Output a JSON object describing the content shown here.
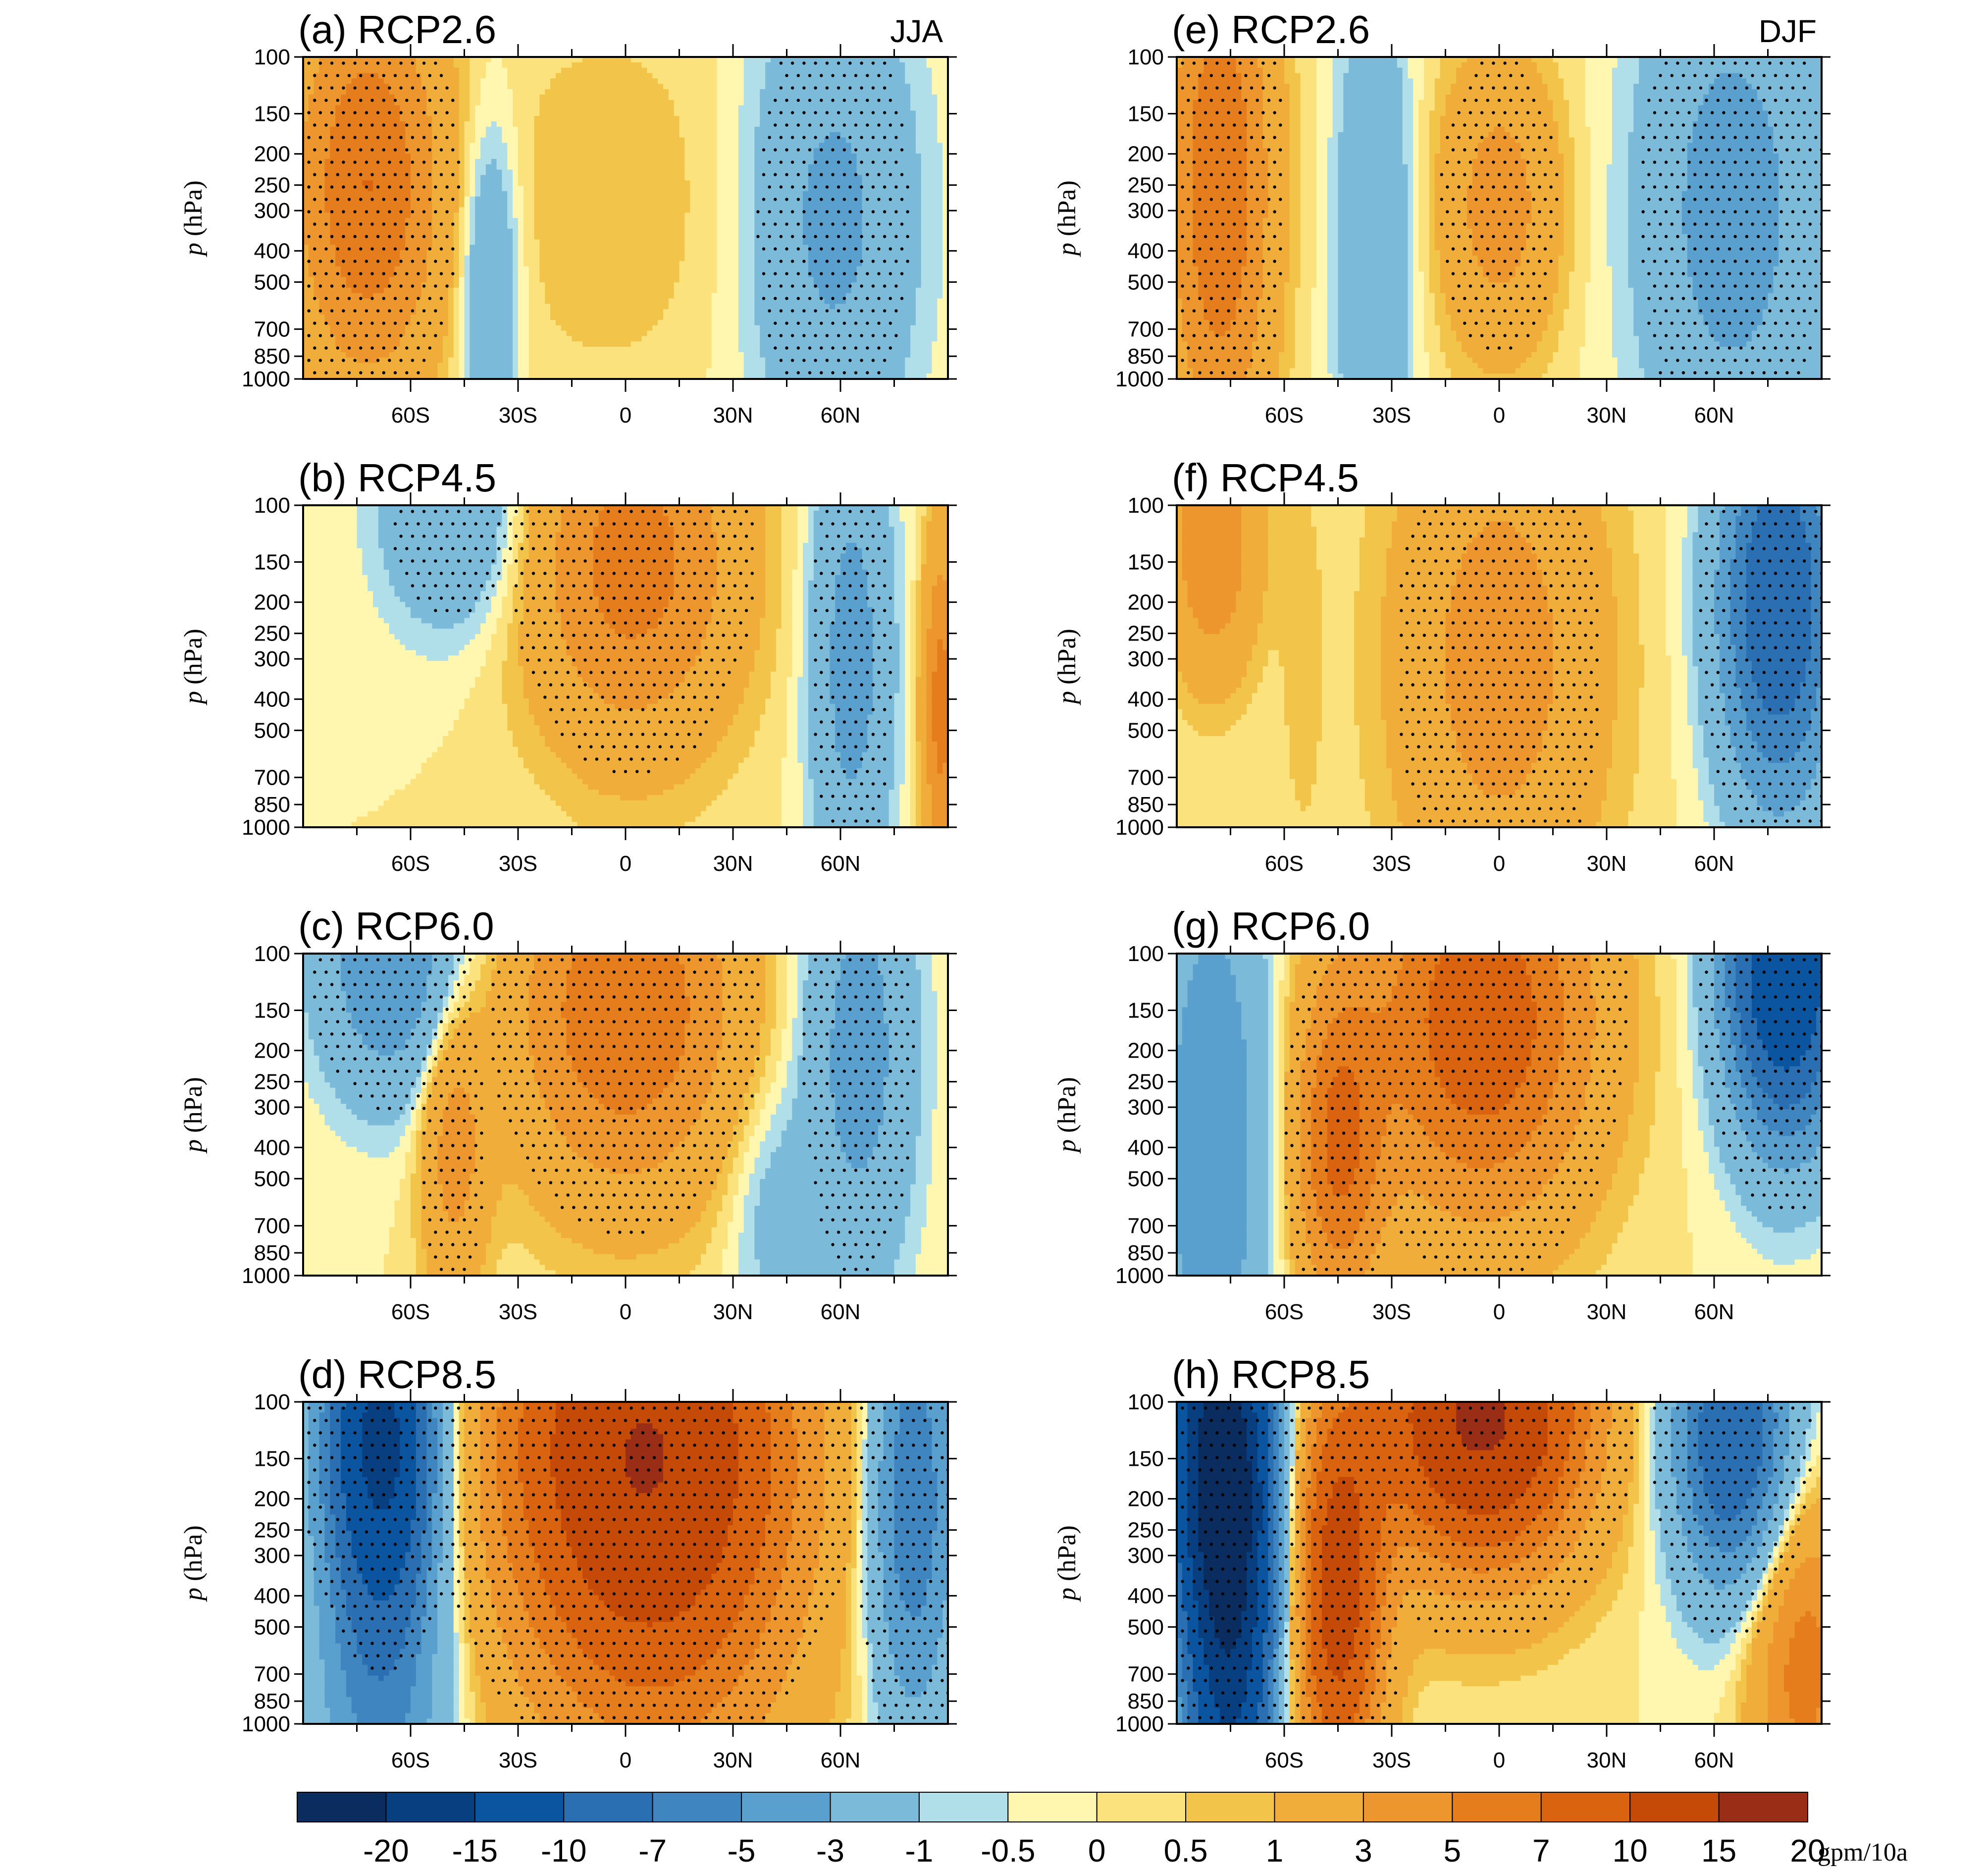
{
  "chart_data": {
    "type": "heatmap",
    "figure_kind": "filled contour, latitude–pressure cross sections",
    "x_ticks": [
      "60S",
      "30S",
      "0",
      "30N",
      "60N"
    ],
    "x_tick_values": [
      -60,
      -30,
      0,
      30,
      60
    ],
    "xlim": [
      -90,
      90
    ],
    "y_ticks": [
      "100",
      "150",
      "200",
      "250",
      "300",
      "400",
      "500",
      "700",
      "850",
      "1000"
    ],
    "y_tick_values": [
      100,
      150,
      200,
      250,
      300,
      400,
      500,
      700,
      850,
      1000
    ],
    "ylim": [
      1000,
      100
    ],
    "y_scale": "log, reversed",
    "ylabel_italic": "p",
    "ylabel_rest": " (hPa)",
    "stippling": "dots over significant regions",
    "panels": [
      {
        "id": "a",
        "title": "(a) RCP2.6",
        "season": "JJA",
        "col": 0,
        "row": 0,
        "features": [
          {
            "lat": -72,
            "p": 250,
            "value": 7,
            "wlat": 20,
            "wlogp": 0.6,
            "sig": true
          },
          {
            "lat": -5,
            "p": 280,
            "value": 1,
            "wlat": 32,
            "wlogp": 0.55,
            "sig": false
          },
          {
            "lat": 58,
            "p": 320,
            "value": -3.5,
            "wlat": 22,
            "wlogp": 0.7,
            "sig": true
          },
          {
            "lat": -38,
            "p": 500,
            "value": -3,
            "wlat": 8,
            "wlogp": 0.5,
            "sig": false
          }
        ]
      },
      {
        "id": "b",
        "title": "(b) RCP4.5",
        "season": "",
        "col": 0,
        "row": 1,
        "features": [
          {
            "lat": 2,
            "p": 150,
            "value": 6,
            "wlat": 28,
            "wlogp": 0.55,
            "sig": true
          },
          {
            "lat": 63,
            "p": 300,
            "value": -4,
            "wlat": 11,
            "wlogp": 0.7,
            "sig": true
          },
          {
            "lat": -48,
            "p": 110,
            "value": -3,
            "wlat": 20,
            "wlogp": 0.35,
            "sig": true
          },
          {
            "lat": 88,
            "p": 420,
            "value": 6,
            "wlat": 5,
            "wlogp": 0.5,
            "sig": false
          }
        ]
      },
      {
        "id": "c",
        "title": "(c) RCP6.0",
        "season": "",
        "col": 0,
        "row": 2,
        "features": [
          {
            "lat": 0,
            "p": 150,
            "value": 7,
            "wlat": 30,
            "wlogp": 0.55,
            "sig": true
          },
          {
            "lat": -48,
            "p": 380,
            "value": 4,
            "wlat": 9,
            "wlogp": 0.45,
            "sig": true
          },
          {
            "lat": 65,
            "p": 200,
            "value": -4,
            "wlat": 15,
            "wlogp": 0.7,
            "sig": true
          },
          {
            "lat": -65,
            "p": 110,
            "value": -5,
            "wlat": 20,
            "wlogp": 0.4,
            "sig": true
          },
          {
            "lat": 40,
            "p": 600,
            "value": -1.5,
            "wlat": 12,
            "wlogp": 0.4,
            "sig": false
          }
        ]
      },
      {
        "id": "d",
        "title": "(d) RCP8.5",
        "season": "",
        "col": 0,
        "row": 3,
        "features": [
          {
            "lat": 5,
            "p": 130,
            "value": 14,
            "wlat": 40,
            "wlogp": 0.7,
            "sig": true
          },
          {
            "lat": 10,
            "p": 600,
            "value": 3,
            "wlat": 38,
            "wlogp": 0.7,
            "sig": true
          },
          {
            "lat": -68,
            "p": 120,
            "value": -15,
            "wlat": 15,
            "wlogp": 0.5,
            "sig": true
          },
          {
            "lat": -68,
            "p": 600,
            "value": -6,
            "wlat": 18,
            "wlogp": 0.7,
            "sig": false
          },
          {
            "lat": 80,
            "p": 200,
            "value": -7,
            "wlat": 12,
            "wlogp": 0.7,
            "sig": true
          }
        ]
      },
      {
        "id": "e",
        "title": "(e) RCP2.6",
        "season": "DJF",
        "col": 1,
        "row": 0,
        "features": [
          {
            "lat": -78,
            "p": 250,
            "value": 7,
            "wlat": 14,
            "wlogp": 0.8,
            "sig": true
          },
          {
            "lat": 0,
            "p": 290,
            "value": 4,
            "wlat": 16,
            "wlogp": 0.45,
            "sig": true
          },
          {
            "lat": 65,
            "p": 300,
            "value": -4,
            "wlat": 25,
            "wlogp": 0.8,
            "sig": true
          },
          {
            "lat": -35,
            "p": 400,
            "value": -3,
            "wlat": 10,
            "wlogp": 0.8,
            "sig": false
          }
        ]
      },
      {
        "id": "f",
        "title": "(f) RCP4.5",
        "season": "",
        "col": 1,
        "row": 1,
        "features": [
          {
            "lat": 0,
            "p": 300,
            "value": 4,
            "wlat": 28,
            "wlogp": 0.8,
            "sig": true
          },
          {
            "lat": -80,
            "p": 130,
            "value": 5,
            "wlat": 12,
            "wlogp": 0.4,
            "sig": false
          },
          {
            "lat": 78,
            "p": 200,
            "value": -10,
            "wlat": 16,
            "wlogp": 0.6,
            "sig": true
          },
          {
            "lat": -55,
            "p": 300,
            "value": 0.8,
            "wlat": 6,
            "wlogp": 0.6,
            "sig": false
          }
        ]
      },
      {
        "id": "g",
        "title": "(g) RCP6.0",
        "season": "",
        "col": 1,
        "row": 2,
        "features": [
          {
            "lat": -5,
            "p": 160,
            "value": 9,
            "wlat": 30,
            "wlogp": 0.6,
            "sig": true
          },
          {
            "lat": -45,
            "p": 400,
            "value": 7,
            "wlat": 12,
            "wlogp": 0.5,
            "sig": true
          },
          {
            "lat": 80,
            "p": 110,
            "value": -15,
            "wlat": 16,
            "wlogp": 0.5,
            "sig": true
          },
          {
            "lat": -80,
            "p": 400,
            "value": -5,
            "wlat": 15,
            "wlogp": 0.9,
            "sig": false
          }
        ]
      },
      {
        "id": "h",
        "title": "(h) RCP8.5",
        "season": "",
        "col": 1,
        "row": 3,
        "features": [
          {
            "lat": -5,
            "p": 110,
            "value": 16,
            "wlat": 28,
            "wlogp": 0.45,
            "sig": true
          },
          {
            "lat": -45,
            "p": 400,
            "value": 12,
            "wlat": 12,
            "wlogp": 0.6,
            "sig": true
          },
          {
            "lat": -78,
            "p": 140,
            "value": -20,
            "wlat": 14,
            "wlogp": 0.55,
            "sig": true
          },
          {
            "lat": -75,
            "p": 600,
            "value": -15,
            "wlat": 12,
            "wlogp": 0.7,
            "sig": true
          },
          {
            "lat": 65,
            "p": 130,
            "value": -10,
            "wlat": 16,
            "wlogp": 0.45,
            "sig": true
          },
          {
            "lat": 85,
            "p": 650,
            "value": 6,
            "wlat": 14,
            "wlogp": 0.5,
            "sig": false
          }
        ]
      }
    ],
    "colorbar": {
      "levels": [
        -20,
        -15,
        -10,
        -7,
        -5,
        -3,
        -1,
        -0.5,
        0,
        0.5,
        1,
        3,
        5,
        7,
        10,
        15,
        20
      ],
      "labels": [
        "-20",
        "-15",
        "-10",
        "-7",
        "-5",
        "-3",
        "-1",
        "-0.5",
        "0",
        "0.5",
        "1",
        "3",
        "5",
        "7",
        "10",
        "15",
        "20"
      ],
      "colors": [
        "#0a2c5e",
        "#083f80",
        "#0b55a0",
        "#2b6fb3",
        "#3f86c0",
        "#5aa0cf",
        "#7cbad9",
        "#b0dfea",
        "#fff7b0",
        "#fbe27c",
        "#f2c44a",
        "#f0ad3a",
        "#ec962d",
        "#e57d1c",
        "#d9630e",
        "#c54a07",
        "#9a2d16"
      ],
      "unit": "gpm/10a"
    }
  }
}
